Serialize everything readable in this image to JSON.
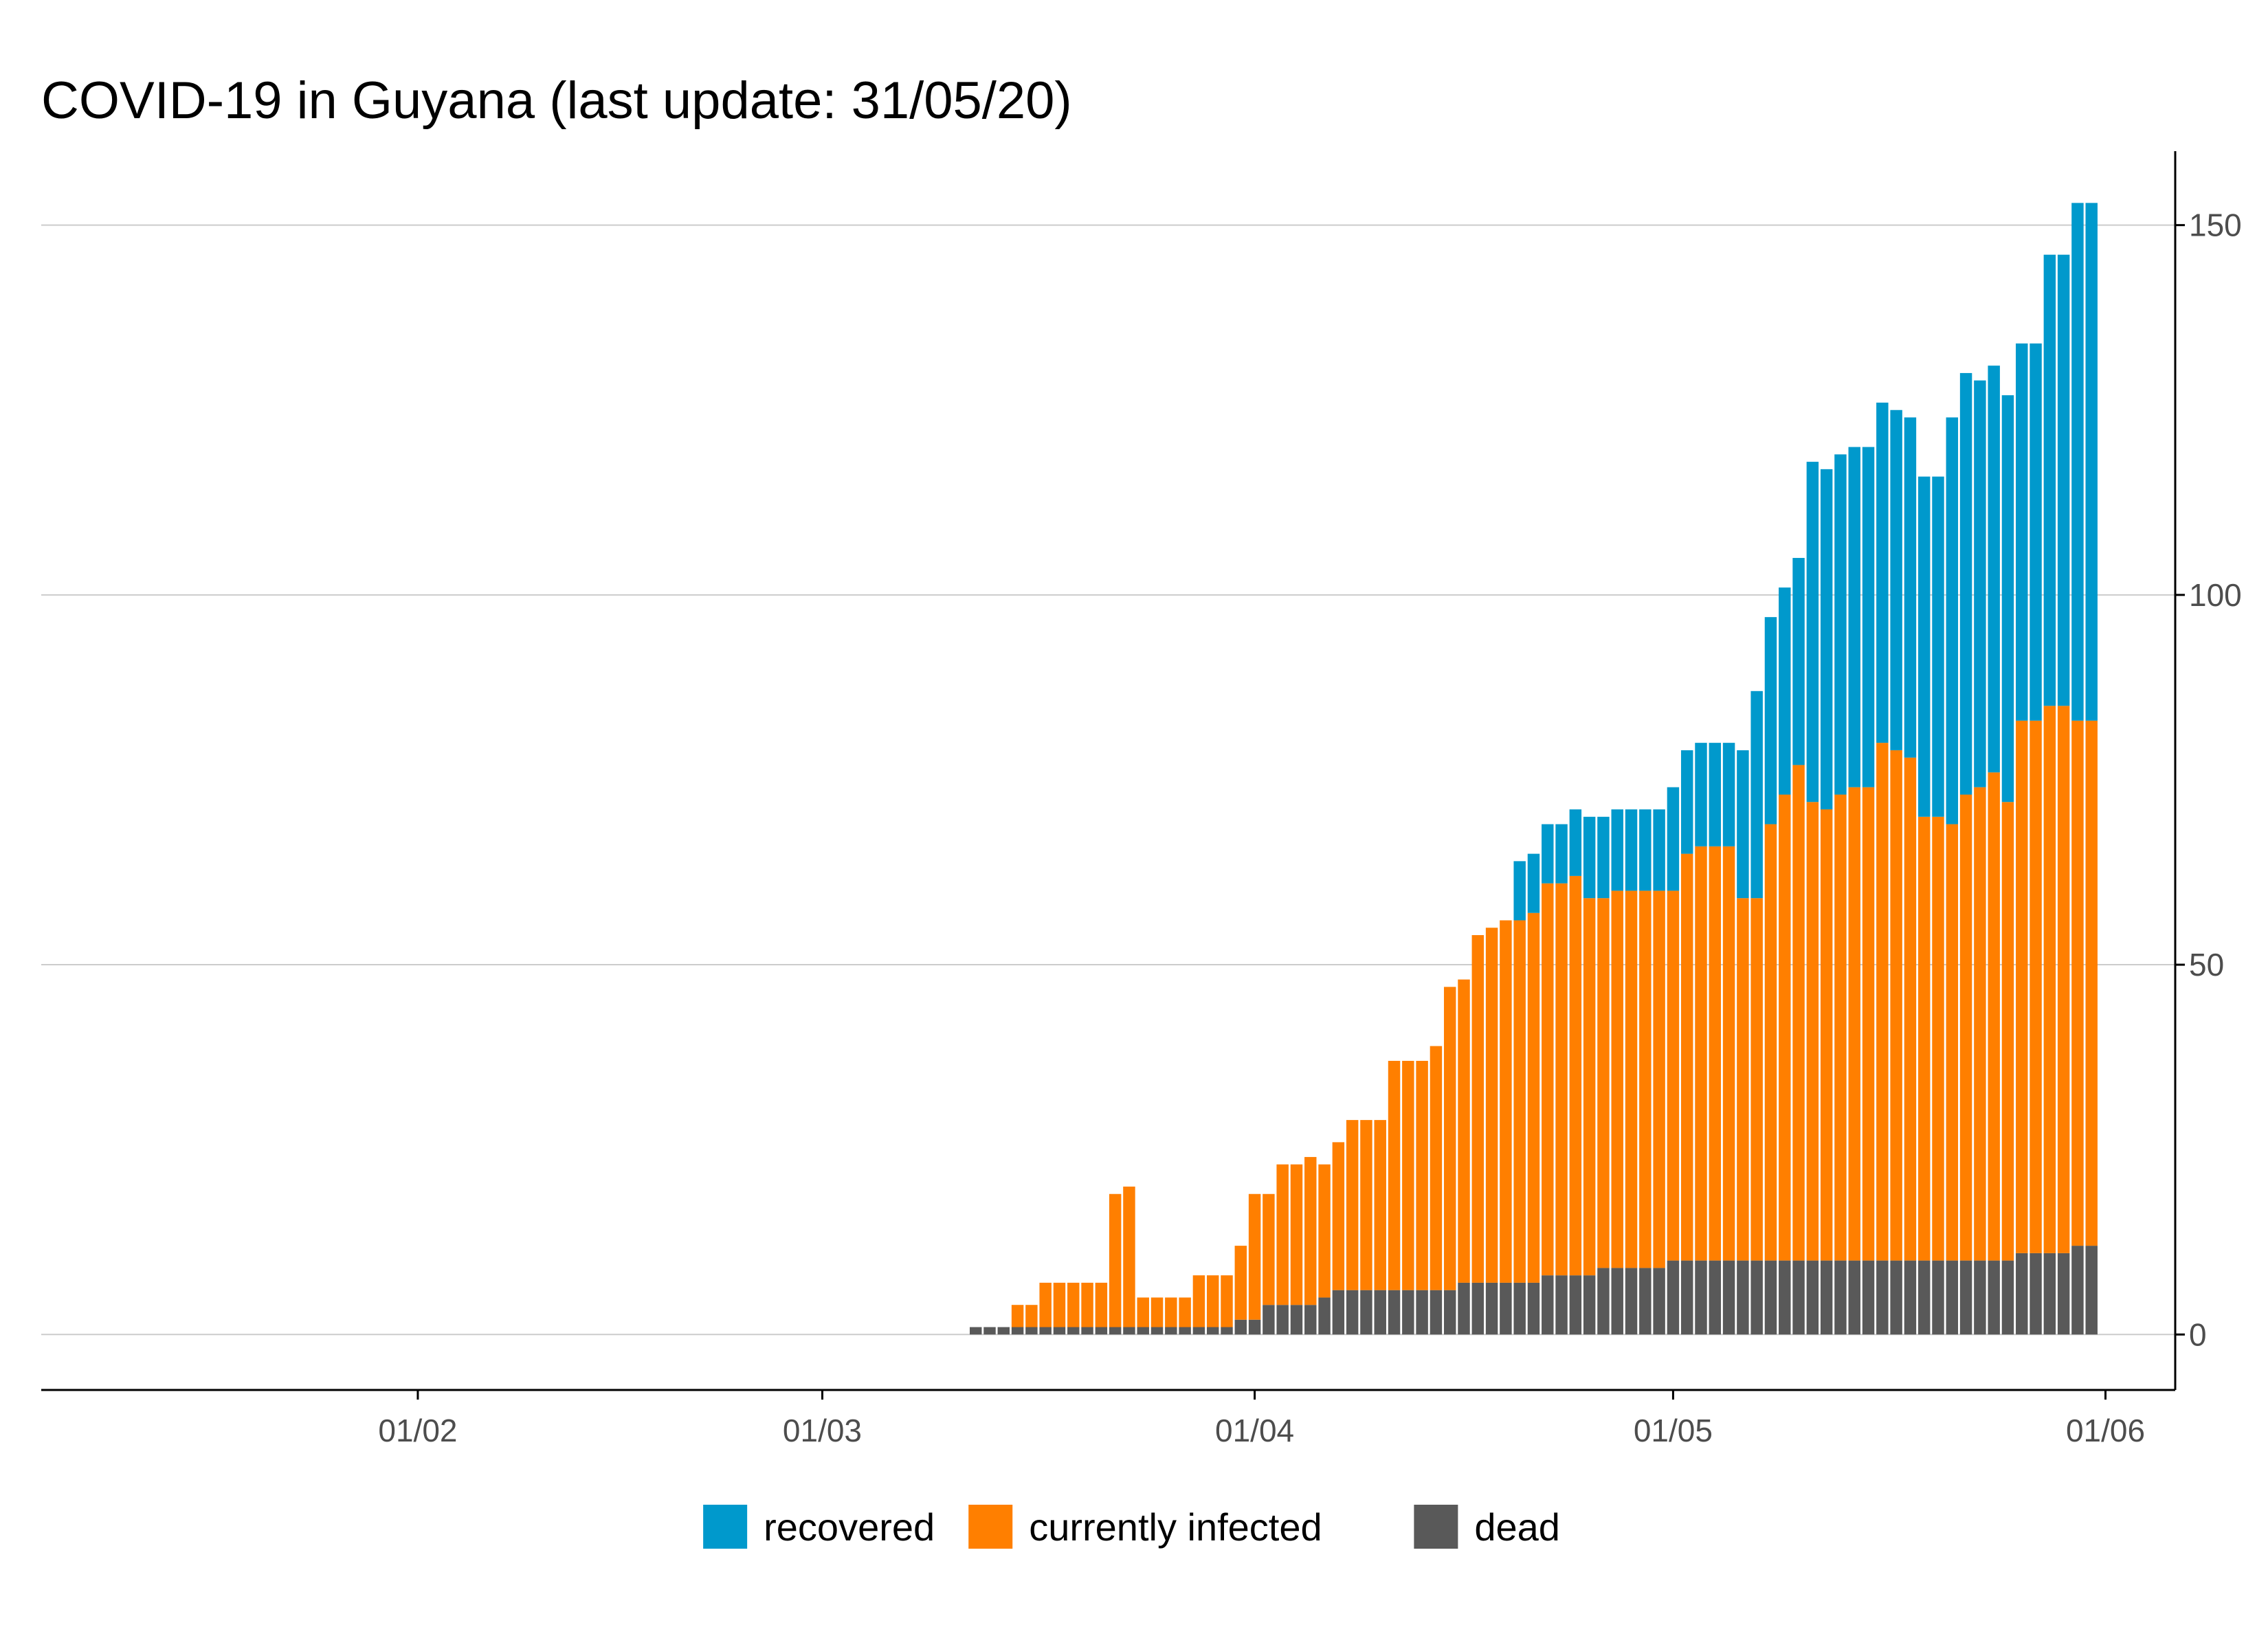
{
  "chart_data": {
    "type": "bar",
    "stacked": true,
    "title": "COVID-19 in Guyana (last update: 31/05/20)",
    "xlabel": "",
    "ylabel": "",
    "x_axis": {
      "kind": "date",
      "range": [
        "2020-01-05",
        "2020-06-06"
      ],
      "ticks": [
        {
          "date": "2020-02-01",
          "label": "01/02"
        },
        {
          "date": "2020-03-01",
          "label": "01/03"
        },
        {
          "date": "2020-04-01",
          "label": "01/04"
        },
        {
          "date": "2020-05-01",
          "label": "01/05"
        },
        {
          "date": "2020-06-01",
          "label": "01/06"
        }
      ]
    },
    "y_axis": {
      "position": "right",
      "ylim": [
        -7.5,
        160
      ],
      "ticks": [
        0,
        50,
        100,
        150
      ]
    },
    "grid": "horizontal",
    "legend": {
      "placement": "bottom"
    },
    "colors": {
      "recovered": "#0099cc",
      "currently infected": "#ff7f00",
      "dead": "#595959",
      "grid": "#cccccc",
      "axis": "#000000",
      "tick_label": "#4d4d4d",
      "title": "#000000"
    },
    "dates": [
      "2020-03-12",
      "2020-03-13",
      "2020-03-14",
      "2020-03-15",
      "2020-03-16",
      "2020-03-17",
      "2020-03-18",
      "2020-03-19",
      "2020-03-20",
      "2020-03-21",
      "2020-03-22",
      "2020-03-23",
      "2020-03-24",
      "2020-03-25",
      "2020-03-26",
      "2020-03-27",
      "2020-03-28",
      "2020-03-29",
      "2020-03-30",
      "2020-03-31",
      "2020-04-01",
      "2020-04-02",
      "2020-04-03",
      "2020-04-04",
      "2020-04-05",
      "2020-04-06",
      "2020-04-07",
      "2020-04-08",
      "2020-04-09",
      "2020-04-10",
      "2020-04-11",
      "2020-04-12",
      "2020-04-13",
      "2020-04-14",
      "2020-04-15",
      "2020-04-16",
      "2020-04-17",
      "2020-04-18",
      "2020-04-19",
      "2020-04-20",
      "2020-04-21",
      "2020-04-22",
      "2020-04-23",
      "2020-04-24",
      "2020-04-25",
      "2020-04-26",
      "2020-04-27",
      "2020-04-28",
      "2020-04-29",
      "2020-04-30",
      "2020-05-01",
      "2020-05-02",
      "2020-05-03",
      "2020-05-04",
      "2020-05-05",
      "2020-05-06",
      "2020-05-07",
      "2020-05-08",
      "2020-05-09",
      "2020-05-10",
      "2020-05-11",
      "2020-05-12",
      "2020-05-13",
      "2020-05-14",
      "2020-05-15",
      "2020-05-16",
      "2020-05-17",
      "2020-05-18",
      "2020-05-19",
      "2020-05-20",
      "2020-05-21",
      "2020-05-22",
      "2020-05-23",
      "2020-05-24",
      "2020-05-25",
      "2020-05-26",
      "2020-05-27",
      "2020-05-28",
      "2020-05-29",
      "2020-05-30",
      "2020-05-31"
    ],
    "series": [
      {
        "name": "dead",
        "values": [
          1,
          1,
          1,
          1,
          1,
          1,
          1,
          1,
          1,
          1,
          1,
          1,
          1,
          1,
          1,
          1,
          1,
          1,
          1,
          2,
          2,
          4,
          4,
          4,
          4,
          5,
          6,
          6,
          6,
          6,
          6,
          6,
          6,
          6,
          6,
          7,
          7,
          7,
          7,
          7,
          7,
          8,
          8,
          8,
          8,
          9,
          9,
          9,
          9,
          9,
          10,
          10,
          10,
          10,
          10,
          10,
          10,
          10,
          10,
          10,
          10,
          10,
          10,
          10,
          10,
          10,
          10,
          10,
          10,
          10,
          10,
          10,
          10,
          10,
          10,
          11,
          11,
          11,
          11,
          12,
          12
        ]
      },
      {
        "name": "currently infected",
        "values": [
          0,
          0,
          0,
          3,
          3,
          6,
          6,
          6,
          6,
          6,
          18,
          19,
          4,
          4,
          4,
          4,
          7,
          7,
          7,
          10,
          17,
          15,
          19,
          19,
          20,
          18,
          20,
          23,
          23,
          23,
          31,
          31,
          31,
          33,
          41,
          41,
          47,
          48,
          49,
          49,
          50,
          53,
          53,
          54,
          51,
          50,
          51,
          51,
          51,
          51,
          50,
          55,
          56,
          56,
          56,
          49,
          49,
          59,
          63,
          67,
          62,
          61,
          63,
          64,
          64,
          70,
          69,
          68,
          60,
          60,
          59,
          63,
          64,
          66,
          62,
          72,
          72,
          74,
          74,
          71,
          71
        ]
      },
      {
        "name": "recovered",
        "values": [
          0,
          0,
          0,
          0,
          0,
          0,
          0,
          0,
          0,
          0,
          0,
          0,
          0,
          0,
          0,
          0,
          0,
          0,
          0,
          0,
          0,
          0,
          0,
          0,
          0,
          0,
          0,
          0,
          0,
          0,
          0,
          0,
          0,
          0,
          0,
          0,
          0,
          0,
          0,
          8,
          8,
          8,
          8,
          9,
          11,
          11,
          11,
          11,
          11,
          11,
          14,
          14,
          14,
          14,
          14,
          20,
          28,
          28,
          28,
          28,
          46,
          46,
          46,
          46,
          46,
          46,
          46,
          46,
          46,
          46,
          55,
          57,
          55,
          55,
          55,
          51,
          51,
          61,
          61,
          70,
          70
        ]
      }
    ]
  }
}
